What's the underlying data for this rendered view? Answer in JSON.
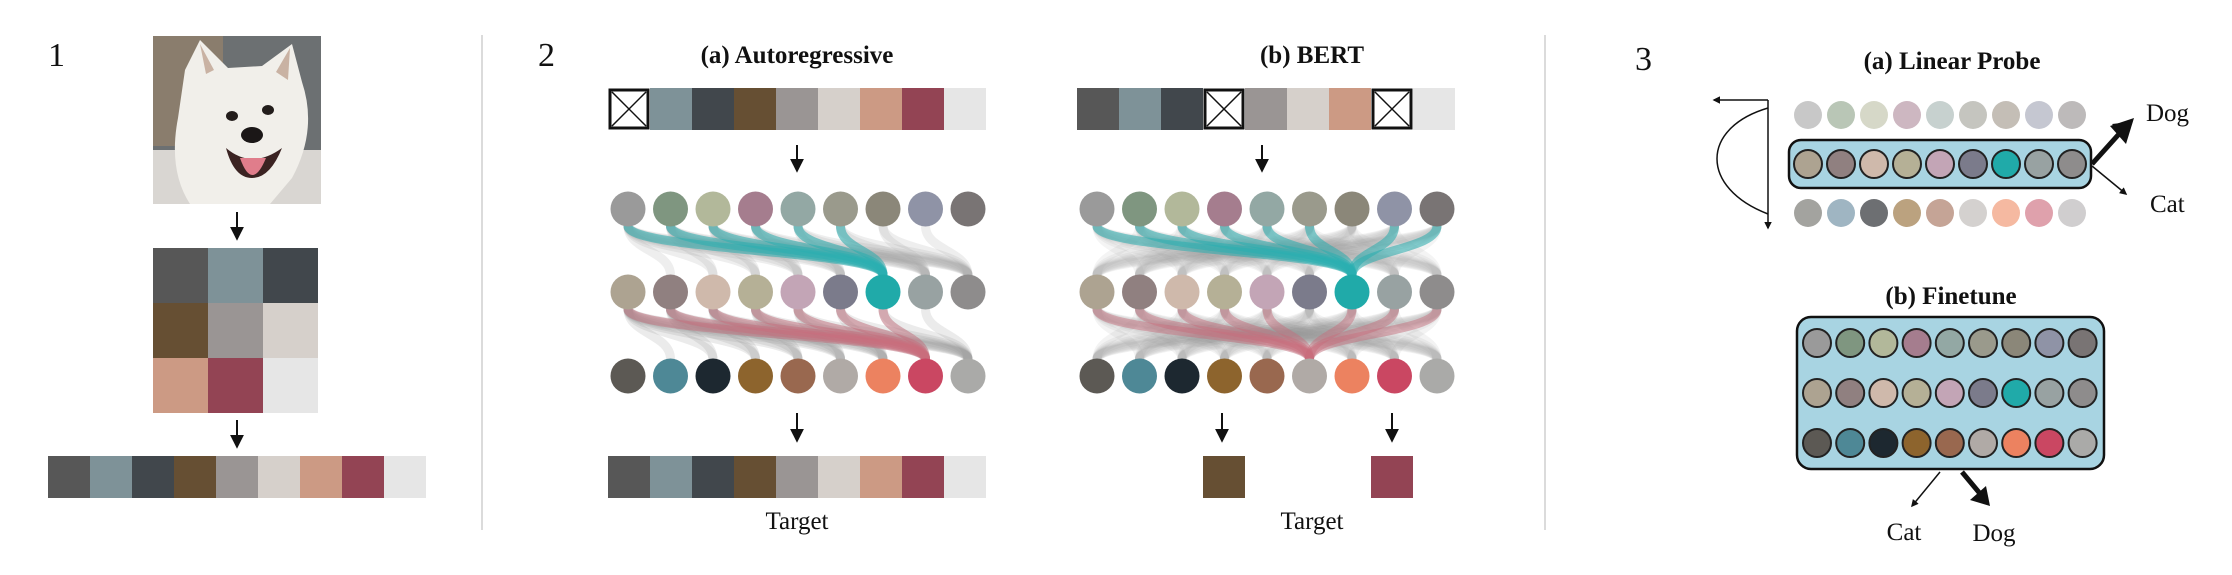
{
  "panels": {
    "p1": {
      "number": "1"
    },
    "p2": {
      "number": "2",
      "ar_title": "(a) Autoregressive",
      "bert_title": "(b) BERT",
      "ar_target_label": "Target",
      "bert_target_label": "Target"
    },
    "p3": {
      "number": "3",
      "linear_probe_title": "(a) Linear Probe",
      "finetune_title": "(b) Finetune",
      "probe_dog": "Dog",
      "probe_cat": "Cat",
      "finetune_cat": "Cat",
      "finetune_dog": "Dog"
    }
  },
  "colors": {
    "pixels": [
      "#575757",
      "#7e9298",
      "#41474c",
      "#664f33",
      "#9a9594",
      "#d6d0cb",
      "#cc9a84",
      "#934454",
      "#e6e6e6"
    ],
    "dog_grid": [
      "#575757",
      "#7e9298",
      "#41474c",
      "#664f33",
      "#9a9594",
      "#d6d0cb",
      "#cc9a84",
      "#934454",
      "#e6e6e6"
    ],
    "layer_top": [
      "#9a9a9a",
      "#7f9680",
      "#b2b89a",
      "#a57d8e",
      "#93a8a4",
      "#9a9a8c",
      "#8b8779",
      "#8f93a6",
      "#797474"
    ],
    "layer_mid": [
      "#ada391",
      "#908080",
      "#cfb9ab",
      "#b5b096",
      "#c3a5b6",
      "#7b7b8b",
      "#20aaa9",
      "#98a2a2",
      "#8e8c8c"
    ],
    "layer_bot": [
      "#5c5954",
      "#4e8896",
      "#1d2830",
      "#8d642d",
      "#99684f",
      "#b0aaa6",
      "#ec8260",
      "#ca4762",
      "#aaaaa8"
    ],
    "probe_top": [
      "#c8c8c8",
      "#b9c6b6",
      "#d6d8c8",
      "#cdb7c1",
      "#c7d1cf",
      "#c5c5bf",
      "#c4beb6",
      "#c5c7d1",
      "#bdbaba"
    ],
    "probe_bot": [
      "#a3a39f",
      "#9fb5c2",
      "#6d6f72",
      "#bba27f",
      "#c5a496",
      "#d4d1cf",
      "#f5b9a1",
      "#dfa1ac",
      "#d0cecf"
    ],
    "highlight_teal": "#2aaeb0",
    "highlight_red": "#c96d7c",
    "box_fill": "#a8d4e2"
  }
}
